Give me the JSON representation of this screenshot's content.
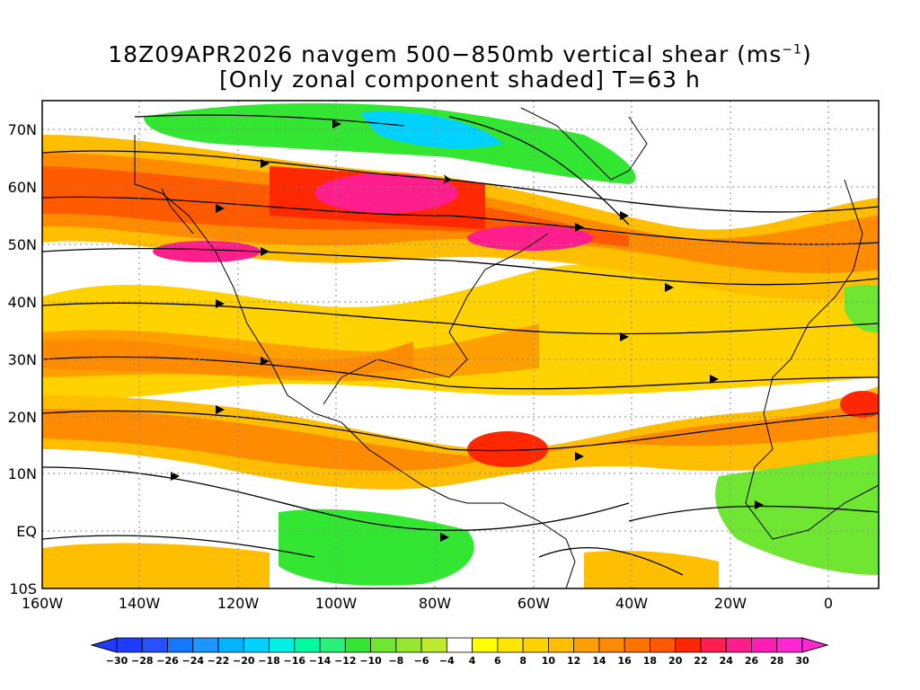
{
  "title": {
    "line1": "18Z09APR2026 navgem 500−850mb vertical shear (ms",
    "line1_sup": "−1",
    "line1_end": ")",
    "line2": "[Only zonal component shaded] T=63 h"
  },
  "map": {
    "region": "North Atlantic / Americas",
    "lon_range": [
      -160,
      10
    ],
    "lat_range": [
      -10,
      75
    ],
    "lat_labels": [
      "70N",
      "60N",
      "50N",
      "40N",
      "30N",
      "20N",
      "10N",
      "EQ",
      "10S"
    ],
    "lon_labels": [
      "160W",
      "140W",
      "120W",
      "100W",
      "80W",
      "60W",
      "40W",
      "20W",
      "0"
    ],
    "field": "zonal component of 500-850mb vertical wind shear",
    "overlay": "shear streamlines"
  },
  "colorbar": {
    "labels": [
      "−30",
      "−28",
      "−26",
      "−24",
      "−22",
      "−20",
      "−18",
      "−16",
      "−14",
      "−12",
      "−10",
      "−8",
      "−6",
      "−4",
      "4",
      "6",
      "8",
      "10",
      "12",
      "14",
      "16",
      "18",
      "20",
      "22",
      "24",
      "26",
      "28",
      "30"
    ],
    "colors": [
      "#1e3cff",
      "#2850ff",
      "#1478ff",
      "#1e96ff",
      "#00b4ff",
      "#00d2ff",
      "#00f0e6",
      "#00faa0",
      "#28f078",
      "#32e632",
      "#6ee632",
      "#96e632",
      "#beeb2d",
      "#ffffff",
      "#ffff00",
      "#ffe600",
      "#ffd200",
      "#ffbe00",
      "#ffa000",
      "#ff8c00",
      "#ff7300",
      "#ff5a00",
      "#ff2800",
      "#ff1e50",
      "#ff1e8c",
      "#ff1eb4",
      "#ff28d2"
    ]
  }
}
